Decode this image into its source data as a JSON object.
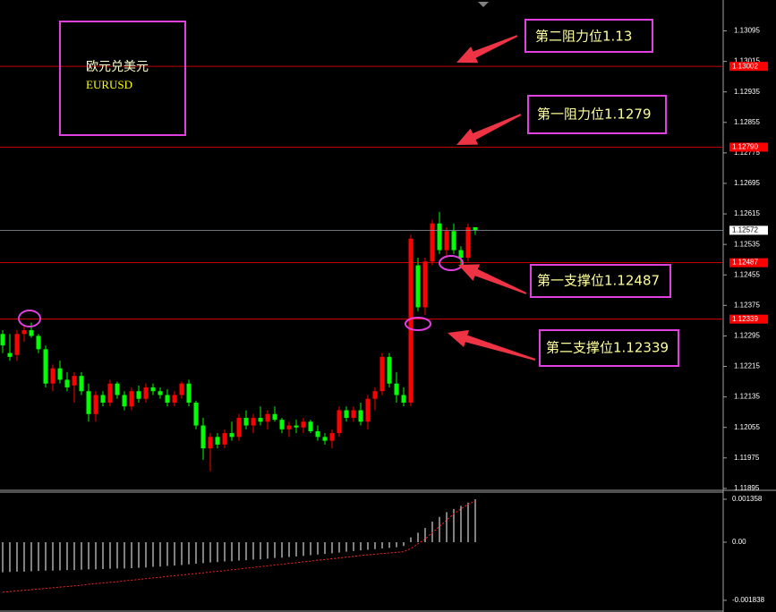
{
  "chart_data": [
    {
      "type": "candlestick",
      "title": "欧元兑美元",
      "subtitle": "EURUSD",
      "up_color": "#ff0000",
      "down_color": "#00ff00",
      "ylim": [
        1.1189,
        1.13176
      ],
      "yticks": [
        1.13095,
        1.13015,
        1.12935,
        1.12855,
        1.12775,
        1.12695,
        1.12615,
        1.12535,
        1.12455,
        1.12375,
        1.12295,
        1.12215,
        1.12135,
        1.12055,
        1.11975,
        1.11895
      ],
      "open": [
        1.123,
        1.1225,
        1.12245,
        1.123,
        1.1231,
        1.12295,
        1.1226,
        1.1217,
        1.1221,
        1.1218,
        1.12165,
        1.1219,
        1.1215,
        1.1209,
        1.1214,
        1.1212,
        1.1217,
        1.1214,
        1.1211,
        1.1215,
        1.1213,
        1.1216,
        1.1215,
        1.1214,
        1.1212,
        1.1214,
        1.1217,
        1.1212,
        1.1206,
        1.12,
        1.1203,
        1.1201,
        1.1204,
        1.1203,
        1.1208,
        1.1206,
        1.1208,
        1.1207,
        1.1209,
        1.12075,
        1.1205,
        1.1206,
        1.12055,
        1.1207,
        1.12045,
        1.1203,
        1.1202,
        1.1204,
        1.121,
        1.1208,
        1.121,
        1.1207,
        1.1213,
        1.1215,
        1.1224,
        1.1217,
        1.1214,
        1.1212,
        1.1248,
        1.1237,
        1.1249,
        1.1259,
        1.1252,
        1.1257,
        1.1252,
        1.125,
        1.1258
      ],
      "high": [
        1.1231,
        1.123,
        1.1231,
        1.1232,
        1.1233,
        1.123,
        1.1227,
        1.1222,
        1.1223,
        1.122,
        1.122,
        1.122,
        1.1217,
        1.1215,
        1.1215,
        1.1218,
        1.12175,
        1.1215,
        1.1216,
        1.12165,
        1.1217,
        1.1217,
        1.1216,
        1.12155,
        1.1215,
        1.12175,
        1.1218,
        1.12125,
        1.1208,
        1.1204,
        1.1204,
        1.1205,
        1.1207,
        1.1209,
        1.121,
        1.1209,
        1.1211,
        1.121,
        1.1211,
        1.1208,
        1.1207,
        1.12075,
        1.1208,
        1.12075,
        1.1206,
        1.1204,
        1.1205,
        1.1211,
        1.1211,
        1.1211,
        1.1212,
        1.1214,
        1.1216,
        1.1225,
        1.1225,
        1.122,
        1.1216,
        1.1256,
        1.125,
        1.125,
        1.126,
        1.1262,
        1.1258,
        1.1259,
        1.1253,
        1.1259,
        1.1258
      ],
      "low": [
        1.1225,
        1.1223,
        1.1223,
        1.1228,
        1.1229,
        1.1225,
        1.1216,
        1.1215,
        1.1217,
        1.1215,
        1.1212,
        1.1214,
        1.1207,
        1.1207,
        1.1211,
        1.1211,
        1.1213,
        1.121,
        1.121,
        1.1212,
        1.1212,
        1.1214,
        1.1213,
        1.1211,
        1.1211,
        1.1213,
        1.1211,
        1.1205,
        1.1197,
        1.1194,
        1.12,
        1.12,
        1.1202,
        1.1202,
        1.1205,
        1.1204,
        1.1206,
        1.1205,
        1.1207,
        1.1204,
        1.1203,
        1.1204,
        1.1204,
        1.1204,
        1.1202,
        1.1201,
        1.12,
        1.1203,
        1.1207,
        1.1207,
        1.1206,
        1.1205,
        1.121,
        1.1214,
        1.1216,
        1.1212,
        1.1211,
        1.1211,
        1.1236,
        1.1235,
        1.1248,
        1.1251,
        1.125,
        1.1251,
        1.1248,
        1.1249,
        1.1256
      ],
      "close": [
        1.1227,
        1.1224,
        1.123,
        1.1231,
        1.12295,
        1.1226,
        1.1217,
        1.1221,
        1.1218,
        1.1216,
        1.1219,
        1.1215,
        1.1209,
        1.1214,
        1.1212,
        1.1217,
        1.1214,
        1.1211,
        1.1215,
        1.1213,
        1.1216,
        1.1215,
        1.1214,
        1.1212,
        1.1214,
        1.1217,
        1.1212,
        1.1206,
        1.12,
        1.1203,
        1.1201,
        1.1204,
        1.1203,
        1.1208,
        1.1206,
        1.1208,
        1.1207,
        1.1209,
        1.12075,
        1.1205,
        1.1206,
        1.12055,
        1.1207,
        1.12045,
        1.1203,
        1.1202,
        1.1204,
        1.121,
        1.1208,
        1.121,
        1.1207,
        1.1213,
        1.1215,
        1.1224,
        1.1217,
        1.1214,
        1.1212,
        1.1255,
        1.1237,
        1.1249,
        1.1259,
        1.1252,
        1.1257,
        1.1252,
        1.125,
        1.1258,
        1.12572
      ],
      "levels": [
        1.13002,
        1.1279,
        1.12487,
        1.12339
      ],
      "level_labels": [
        "1.13002",
        "1.12790",
        "1.12487",
        "1.12339"
      ],
      "level_color": "#ff0000",
      "last_price": 1.12572,
      "annotations": [
        "第二阻力位1.13",
        "第一阻力位1.1279",
        "第一支撑位1.12487",
        "第二支撑位1.12339"
      ]
    },
    {
      "type": "macd",
      "ylim": [
        -0.002207,
        0.001584
      ],
      "yticks": [
        0.001358,
        {
          "value": 0,
          "label": "0.00"
        },
        -0.001838
      ],
      "histogram": [
        -0.00095,
        -0.00094,
        -0.00093,
        -0.00093,
        -0.00092,
        -0.00091,
        -0.0009,
        -0.0009,
        -0.00089,
        -0.00088,
        -0.00088,
        -0.00087,
        -0.00086,
        -0.00086,
        -0.00085,
        -0.00084,
        -0.00083,
        -0.00083,
        -0.00082,
        -0.00081,
        -0.0008,
        -0.00078,
        -0.00077,
        -0.00075,
        -0.00074,
        -0.00072,
        -0.0007,
        -0.00068,
        -0.00066,
        -0.00064,
        -0.00063,
        -0.00061,
        -0.0006,
        -0.00058,
        -0.00057,
        -0.00055,
        -0.00054,
        -0.00052,
        -0.0005,
        -0.00049,
        -0.00047,
        -0.00045,
        -0.00043,
        -0.00041,
        -0.00039,
        -0.00037,
        -0.00035,
        -0.00033,
        -0.0003,
        -0.00028,
        -0.00026,
        -0.00024,
        -0.00022,
        -0.0002,
        -0.00018,
        -0.00016,
        -0.00012,
        0.00015,
        0.0003,
        0.00045,
        0.00065,
        0.0008,
        0.00095,
        0.00105,
        0.00115,
        0.00125,
        0.001358
      ],
      "histogram_color": "#ffffff",
      "signal": [
        -0.00158,
        -0.00156,
        -0.00154,
        -0.00152,
        -0.0015,
        -0.00148,
        -0.00146,
        -0.00144,
        -0.00142,
        -0.0014,
        -0.00138,
        -0.00136,
        -0.00133,
        -0.00131,
        -0.00129,
        -0.00127,
        -0.00125,
        -0.00122,
        -0.0012,
        -0.00118,
        -0.00115,
        -0.00113,
        -0.00111,
        -0.00108,
        -0.00106,
        -0.00104,
        -0.00101,
        -0.00099,
        -0.00097,
        -0.00094,
        -0.00092,
        -0.0009,
        -0.00087,
        -0.00085,
        -0.00082,
        -0.0008,
        -0.00077,
        -0.00075,
        -0.00072,
        -0.0007,
        -0.00067,
        -0.00065,
        -0.00062,
        -0.0006,
        -0.00057,
        -0.00055,
        -0.00052,
        -0.0005,
        -0.00047,
        -0.00045,
        -0.00042,
        -0.0004,
        -0.00038,
        -0.00036,
        -0.00034,
        -0.00032,
        -0.0003,
        -0.0002,
        -5e-05,
        0.0001,
        0.0003,
        0.0005,
        0.0007,
        0.0009,
        0.00105,
        0.0012,
        0.0013
      ],
      "signal_color": "#ff2020"
    }
  ]
}
